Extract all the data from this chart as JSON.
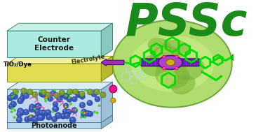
{
  "title": "PSSc",
  "title_color": "#1a8a1a",
  "title_fontsize": 46,
  "background_color": "#ffffff",
  "counter_electrode_label": "Counter\nElectrode",
  "electrolyte_label": "Electrolyte",
  "tio2_label": "TIO₂/Dye",
  "photoanode_label": "Photoanode",
  "ce_face": "#b8ede8",
  "ce_top": "#d8f5f0",
  "ce_side": "#90ccc8",
  "el_face": "#e8e870",
  "el_top": "#f0f090",
  "el_side": "#c0c040",
  "pa_face": "#a8d8f0",
  "pa_top": "#c8ecf8",
  "pa_side": "#80b8d8",
  "edge_color": "#406870",
  "blue_sphere": "#3a5bc0",
  "blue_highlight": "#7080e8",
  "green_dot": "#44cc22",
  "olive_sphere": "#88aa44",
  "leaf_bg": "#a0c860",
  "leaf_dark": "#6a9830",
  "leaf_light": "#c8e890",
  "molecule_green": "#00dd00",
  "porphyrin_purple": "#9944bb",
  "porphyrin_fill": "#8833aa",
  "arrow_purple": "#7722aa",
  "gold_center": "#d4aa00",
  "pink_dot": "#ee2299",
  "arrow_fill": "#9933bb"
}
